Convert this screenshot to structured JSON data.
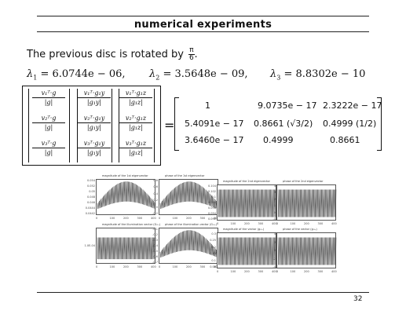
{
  "slide": {
    "title": "numerical experiments",
    "intro_text": "The previous disc is rotated by",
    "rotation_num": "π",
    "rotation_den": "6",
    "rotation_suffix": ".",
    "page_number": "32"
  },
  "eigenvalues": [
    {
      "label": "λ",
      "sub": "1",
      "value": "= 6.0744e − 06,"
    },
    {
      "label": "λ",
      "sub": "2",
      "value": "= 3.5648e − 09,"
    },
    {
      "label": "λ",
      "sub": "3",
      "value": "= 8.8302e − 10"
    }
  ],
  "lhs_matrix": [
    [
      {
        "n": "v₁ᵀ·g",
        "d": "|g|"
      },
      {
        "n": "v₁ᵀ·g₁y",
        "d": "|g₁y|"
      },
      {
        "n": "v₁ᵀ·g₁z",
        "d": "|g₁z|"
      }
    ],
    [
      {
        "n": "v₂ᵀ·g",
        "d": "|g|"
      },
      {
        "n": "v₂ᵀ·g₁y",
        "d": "|g₁y|"
      },
      {
        "n": "v₂ᵀ·g₁z",
        "d": "|g₁z|"
      }
    ],
    [
      {
        "n": "v₃ᵀ·g",
        "d": "|g|"
      },
      {
        "n": "v₃ᵀ·g₁y",
        "d": "|g₁y|"
      },
      {
        "n": "v₃ᵀ·g₁z",
        "d": "|g₁z|"
      }
    ]
  ],
  "rhs_matrix": [
    [
      "1",
      "9.0735e − 17",
      "2.3222e − 17"
    ],
    [
      "5.4091e − 17",
      "0.8661 (√3/2)",
      "0.4999 (1/2)"
    ],
    [
      "3.6460e − 17",
      "0.4999",
      "0.8661"
    ]
  ],
  "plots": [
    {
      "title": "magnitude of the 1st eigenvector",
      "yticks": [
        "0.054",
        "0.052",
        "0.05",
        "0.048",
        "0.046",
        "0.0444",
        "0.0442"
      ],
      "xticks": [
        "0",
        "100",
        "200",
        "300",
        "400"
      ]
    },
    {
      "title": "phase of the 1st eigenvector",
      "yticks": [
        "0.8",
        "0.6",
        "0.4",
        "0.2",
        "0",
        "-0.2"
      ],
      "xticks": [
        "0",
        "100",
        "200",
        "300",
        "400"
      ]
    },
    {
      "title": "magnitude of the 2nd eigenvector",
      "yticks": [
        "0.104",
        "0.102",
        "0.1",
        "0.098",
        "0.096",
        "0.094",
        "0.092"
      ],
      "xticks": [
        "0",
        "100",
        "200",
        "300",
        "400"
      ]
    },
    {
      "title": "phase of the 2nd eigenvector",
      "yticks": [
        "4",
        "3",
        "2",
        "1",
        "0",
        "-1"
      ],
      "xticks": [
        "0",
        "100",
        "200",
        "300",
        "400"
      ]
    },
    {
      "title": "magnitude of the illumination vector (Gᵢ₁ₓ)",
      "yticks": [
        "1.0E-04"
      ],
      "xticks": [
        "0",
        "100",
        "200",
        "300",
        "400"
      ]
    },
    {
      "title": "phase of the illumination vector (Gᵢ₁ₓ)",
      "yticks": [
        "-0.1",
        "-0.2",
        "-0.3",
        "-0.4",
        "-0.5",
        "-0.6",
        "-0.7"
      ],
      "xticks": [
        "0",
        "100",
        "200",
        "300",
        "400"
      ]
    },
    {
      "title": "magnitude of the vector (gᵢ₁ₓ)",
      "yticks": [
        "0.3",
        "0.25",
        "0.2",
        "0.15",
        "0.1",
        "0.05"
      ],
      "xticks": [
        "0",
        "100",
        "200",
        "300",
        "400"
      ]
    },
    {
      "title": "phase of the vector (gᵢ₁ₓ)",
      "yticks": [
        "4",
        "2",
        "0",
        "-2",
        "-4"
      ],
      "xticks": [
        "0",
        "100",
        "200",
        "300",
        "400"
      ]
    }
  ]
}
